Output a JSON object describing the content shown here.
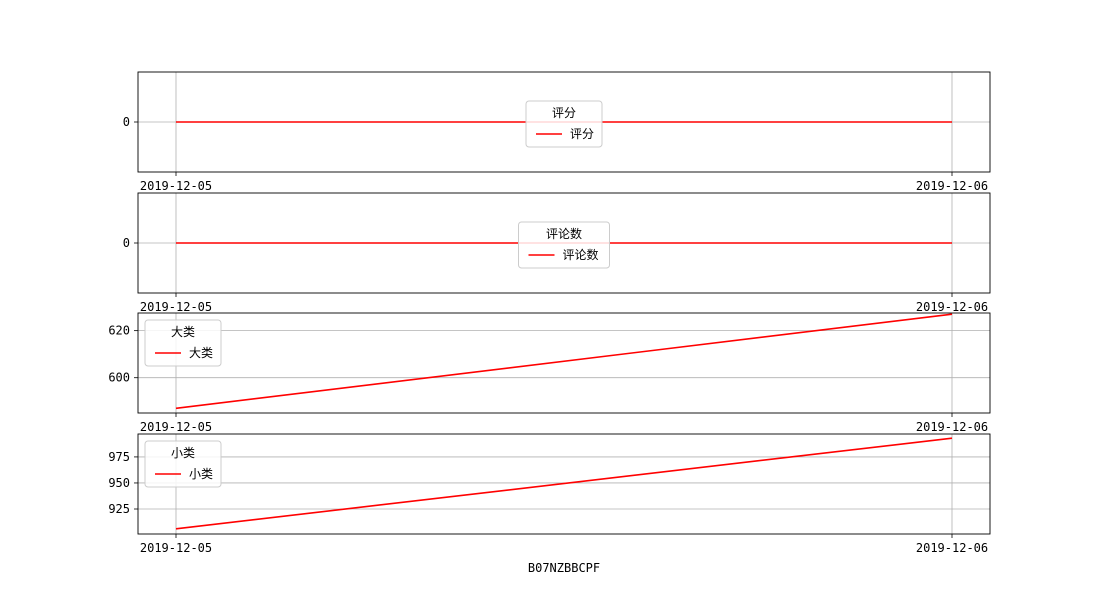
{
  "chart_data": [
    {
      "type": "line",
      "x": [
        "2019-12-05",
        "2019-12-06"
      ],
      "series": [
        {
          "name": "评分",
          "values": [
            0,
            0
          ],
          "color": "#ff0000"
        }
      ],
      "legend_title": "评分",
      "legend_loc": "center",
      "yticks": [
        0
      ],
      "ylim": [
        -0.05,
        0.05
      ],
      "grid": true
    },
    {
      "type": "line",
      "x": [
        "2019-12-05",
        "2019-12-06"
      ],
      "series": [
        {
          "name": "评论数",
          "values": [
            0,
            0
          ],
          "color": "#ff0000"
        }
      ],
      "legend_title": "评论数",
      "legend_loc": "center",
      "yticks": [
        0
      ],
      "ylim": [
        -0.05,
        0.05
      ],
      "grid": true
    },
    {
      "type": "line",
      "x": [
        "2019-12-05",
        "2019-12-06"
      ],
      "series": [
        {
          "name": "大类",
          "values": [
            587,
            627
          ],
          "color": "#ff0000"
        }
      ],
      "legend_title": "大类",
      "legend_loc": "upper left",
      "yticks": [
        580,
        600,
        620
      ],
      "ylim": [
        585,
        627.5
      ],
      "grid": true
    },
    {
      "type": "line",
      "x": [
        "2019-12-05",
        "2019-12-06"
      ],
      "series": [
        {
          "name": "小类",
          "values": [
            906,
            993
          ],
          "color": "#ff0000"
        }
      ],
      "legend_title": "小类",
      "legend_loc": "upper left",
      "yticks": [
        925,
        950,
        975
      ],
      "ylim": [
        901,
        997
      ],
      "grid": true
    }
  ],
  "xlabel": "B07NZBBCPF"
}
